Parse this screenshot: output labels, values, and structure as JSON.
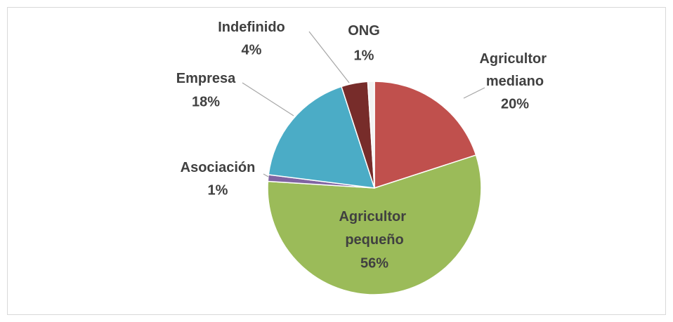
{
  "chart_data": {
    "type": "pie",
    "categories": [
      "Agricultor mediano",
      "Agricultor pequeño",
      "Asociación",
      "Empresa",
      "Indefinido",
      "ONG"
    ],
    "values": [
      20,
      56,
      1,
      18,
      4,
      1
    ],
    "value_labels": [
      "20%",
      "56%",
      "1%",
      "18%",
      "4%",
      "1%"
    ],
    "colors": [
      "#c0504d",
      "#9bbb59",
      "#8064a2",
      "#4bacc6",
      "#772c2a",
      "#f2f2f2"
    ]
  }
}
